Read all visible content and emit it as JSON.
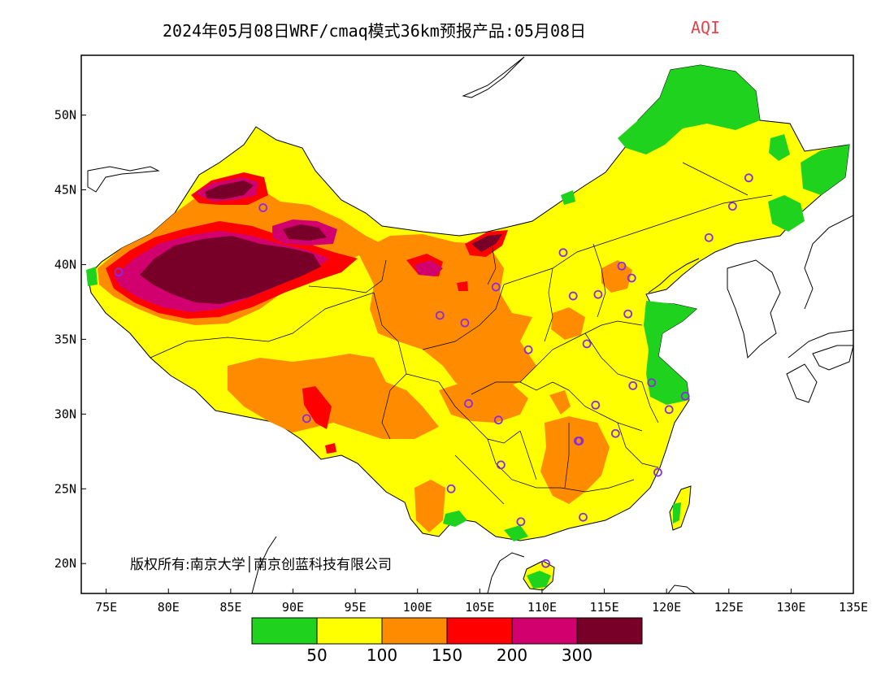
{
  "title": {
    "main": "2024年05月08日WRF/cmaq模式36km预报产品:05月08日",
    "variable": "AQI",
    "variable_color": "#e0464b"
  },
  "map": {
    "lon_range": [
      73,
      135
    ],
    "lat_range": [
      18,
      54
    ],
    "lon_ticks": [
      "75E",
      "80E",
      "85E",
      "90E",
      "95E",
      "100E",
      "105E",
      "110E",
      "115E",
      "120E",
      "125E",
      "130E",
      "135E"
    ],
    "lat_ticks": [
      "20N",
      "25N",
      "30N",
      "35N",
      "40N",
      "45N",
      "50N"
    ],
    "lon_tick_values": [
      75,
      80,
      85,
      90,
      95,
      100,
      105,
      110,
      115,
      120,
      125,
      130,
      135
    ],
    "lat_tick_values": [
      20,
      25,
      30,
      35,
      40,
      45,
      50
    ]
  },
  "aqi_colors": {
    "good": "#1ed21e",
    "moderate": "#ffff00",
    "sensitive": "#ff8c00",
    "unhealthy": "#ff0000",
    "very_unhealthy": "#d2006e",
    "hazardous": "#780028"
  },
  "legend": {
    "colors": [
      "#1ed21e",
      "#ffff00",
      "#ff8c00",
      "#ff0000",
      "#d2006e",
      "#780028"
    ],
    "labels": [
      "50",
      "100",
      "150",
      "200",
      "300"
    ]
  },
  "copyright": "版权所有:南京大学│南京创蓝科技有限公司",
  "stations": [
    [
      87.6,
      43.8
    ],
    [
      76.0,
      39.5
    ],
    [
      91.1,
      29.7
    ],
    [
      101.8,
      36.6
    ],
    [
      103.8,
      36.1
    ],
    [
      106.3,
      38.5
    ],
    [
      111.7,
      40.8
    ],
    [
      112.5,
      37.9
    ],
    [
      114.5,
      38.0
    ],
    [
      116.4,
      39.9
    ],
    [
      117.2,
      39.1
    ],
    [
      116.9,
      36.7
    ],
    [
      113.6,
      34.7
    ],
    [
      108.9,
      34.3
    ],
    [
      104.1,
      30.7
    ],
    [
      106.5,
      29.6
    ],
    [
      106.7,
      26.6
    ],
    [
      102.7,
      25.0
    ],
    [
      108.3,
      22.8
    ],
    [
      113.3,
      23.1
    ],
    [
      110.3,
      20.0
    ],
    [
      112.9,
      28.2
    ],
    [
      114.3,
      30.6
    ],
    [
      115.9,
      28.7
    ],
    [
      117.3,
      31.9
    ],
    [
      118.8,
      32.1
    ],
    [
      120.2,
      30.3
    ],
    [
      121.5,
      31.2
    ],
    [
      119.3,
      26.1
    ],
    [
      123.4,
      41.8
    ],
    [
      125.3,
      43.9
    ],
    [
      126.6,
      45.8
    ],
    [
      113.0,
      28.2
    ]
  ]
}
